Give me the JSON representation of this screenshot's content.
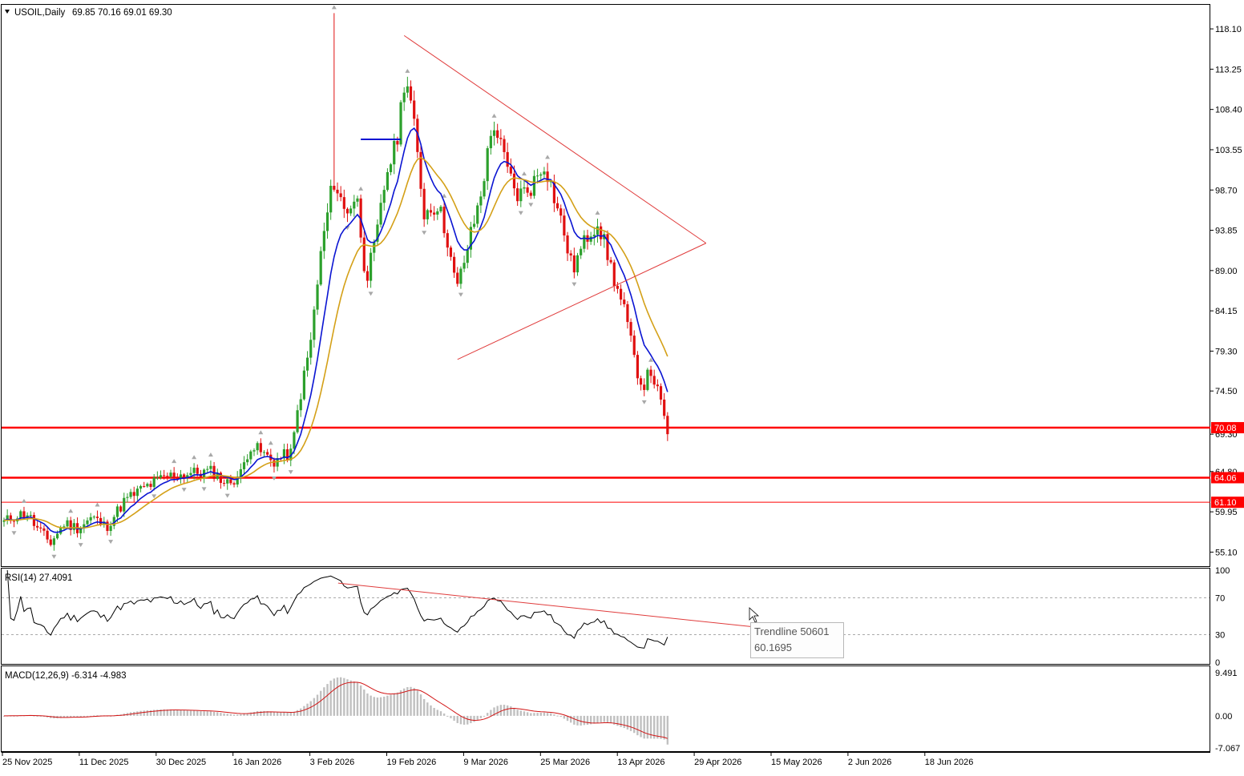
{
  "main_header": {
    "symbol": "USOIL,Daily",
    "ohlc": "69.85 70.16 69.01 69.30"
  },
  "rsi_header": "RSI(14) 27.4091",
  "macd_header": "MACD(12,26,9) -6.314 -4.983",
  "tooltip": {
    "line1": "Trendline 50601",
    "line2": "60.1695"
  },
  "colors": {
    "bull": "#2ca02c",
    "bear": "#e01010",
    "ma_fast": "#0a14d2",
    "ma_slow": "#d4a017",
    "level": "#ff0000",
    "trend": "#e03c3c",
    "osc": "#000000",
    "hist": "#c0c0c0",
    "signal": "#d21414"
  },
  "chart_data": [
    {
      "type": "candlestick",
      "title": "USOIL,Daily",
      "ylim": [
        53.5,
        121
      ],
      "yticks": [
        "118.10",
        "113.25",
        "108.40",
        "103.55",
        "98.70",
        "93.85",
        "89.00",
        "84.15",
        "79.30",
        "74.50",
        "69.30",
        "64.80",
        "59.95",
        "55.10"
      ],
      "xticks": [
        "25 Nov 2025",
        "11 Dec 2025",
        "30 Dec 2025",
        "16 Jan 2026",
        "3 Feb 2026",
        "19 Feb 2026",
        "9 Mar 2026",
        "25 Mar 2026",
        "13 Apr 2026",
        "29 Apr 2026",
        "15 May 2026",
        "2 Jun 2026",
        "18 Jun 2026"
      ],
      "bars": 200,
      "anchors": [
        [
          0,
          58.7
        ],
        [
          5,
          59.5
        ],
        [
          10,
          59.8
        ],
        [
          14,
          58.0
        ],
        [
          20,
          56.2
        ],
        [
          26,
          58.6
        ],
        [
          32,
          58.0
        ],
        [
          38,
          59.3
        ],
        [
          44,
          58.1
        ],
        [
          52,
          61.3
        ],
        [
          60,
          62.8
        ],
        [
          70,
          64.2
        ],
        [
          80,
          64.6
        ],
        [
          90,
          64.8
        ],
        [
          96,
          63.3
        ],
        [
          102,
          64.5
        ],
        [
          106,
          68.0
        ],
        [
          110,
          67.3
        ],
        [
          116,
          66.0
        ],
        [
          121,
          66.7
        ],
        [
          124,
          67.0
        ],
        [
          127,
          73.0
        ],
        [
          132,
          80.0
        ],
        [
          137,
          92.0
        ],
        [
          142,
          100.0
        ],
        [
          147,
          96.0
        ],
        [
          152,
          98.0
        ],
        [
          156,
          88.0
        ],
        [
          160,
          92.0
        ],
        [
          165,
          101.0
        ],
        [
          169,
          104.0
        ],
        [
          173,
          113.0
        ],
        [
          176,
          108.0
        ],
        [
          181,
          96.0
        ],
        [
          187,
          97.0
        ],
        [
          191,
          93.0
        ],
        [
          195,
          86.5
        ],
        [
          200,
          92.0
        ],
        [
          205,
          97.5
        ],
        [
          211,
          107.0
        ],
        [
          217,
          101.0
        ],
        [
          221,
          98.0
        ],
        [
          227,
          99.0
        ],
        [
          233,
          102.0
        ],
        [
          238,
          97.0
        ],
        [
          241,
          94.0
        ],
        [
          245,
          89.0
        ],
        [
          248,
          91.0
        ],
        [
          252,
          93.5
        ],
        [
          256,
          95.0
        ],
        [
          260,
          91.0
        ],
        [
          264,
          87.0
        ],
        [
          268,
          83.5
        ],
        [
          271,
          79.0
        ],
        [
          275,
          75.0
        ],
        [
          279,
          77.0
        ],
        [
          283,
          73.0
        ],
        [
          286,
          69.3
        ]
      ],
      "levels": [
        {
          "label": "70.08",
          "value": 70.08
        },
        {
          "label": "64.06",
          "value": 64.06
        },
        {
          "label": "61.10",
          "value": 61.1
        }
      ],
      "current_price": "69.30",
      "moving_averages": [
        {
          "color": "blue"
        },
        {
          "color": "orange"
        }
      ]
    },
    {
      "type": "line",
      "title": "RSI(14) 27.4091",
      "ylim": [
        0,
        100
      ],
      "yticks": [
        "100",
        "70",
        "30",
        "0"
      ],
      "last": 27.4091
    },
    {
      "type": "bar",
      "title": "MACD(12,26,9) -6.314 -4.983",
      "ylim": [
        -7.067,
        9.491
      ],
      "yticks": [
        "9.491",
        "0.00",
        "-7.067"
      ],
      "macd": -6.314,
      "signal": -4.983
    }
  ]
}
